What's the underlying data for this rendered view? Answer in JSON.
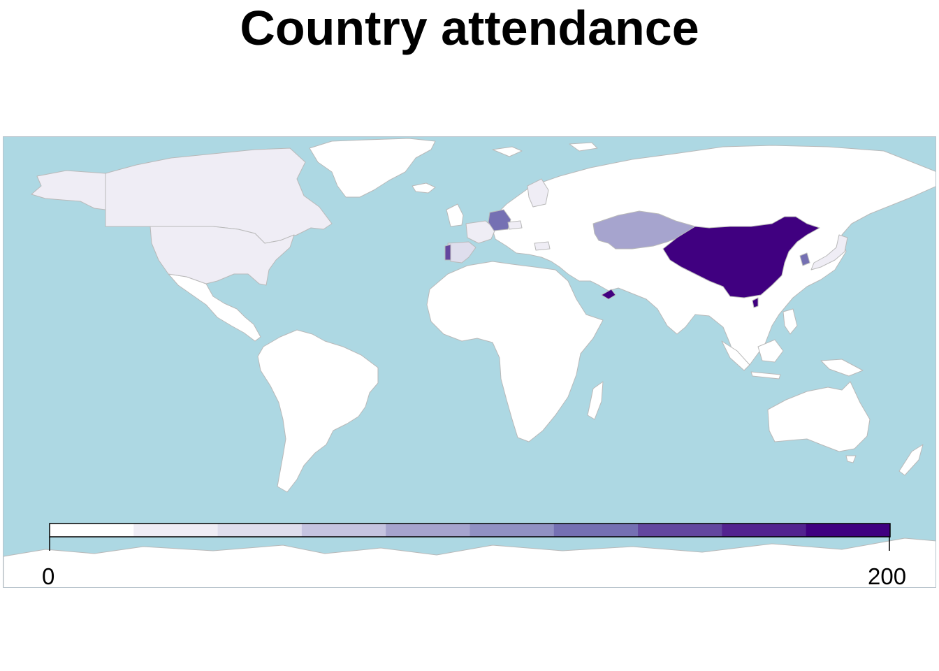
{
  "title": "Country attendance",
  "colors": {
    "ocean": "#add8e3",
    "land_zero": "#ffffff",
    "border": "#b9b9b9",
    "ramp": [
      "#ffffff",
      "#efedf5",
      "#dfdeed",
      "#c5c4e0",
      "#a6a4ce",
      "#9191c3",
      "#7570b3",
      "#63479f",
      "#53238f",
      "#400080"
    ]
  },
  "legend": {
    "min_label": "0",
    "max_label": "200",
    "min": 0,
    "max": 200,
    "bins": 10
  },
  "countries": [
    {
      "name": "China",
      "value": 200
    },
    {
      "name": "United Arab Emirates",
      "value": 200
    },
    {
      "name": "Taiwan",
      "value": 190
    },
    {
      "name": "Germany",
      "value": 130
    },
    {
      "name": "Portugal",
      "value": 140
    },
    {
      "name": "South Korea",
      "value": 130
    },
    {
      "name": "Kazakhstan",
      "value": 90
    },
    {
      "name": "Spain",
      "value": 55
    },
    {
      "name": "Japan",
      "value": 35
    },
    {
      "name": "Canada",
      "value": 30
    },
    {
      "name": "France",
      "value": 25
    },
    {
      "name": "Alaska (United States)",
      "value": 20
    },
    {
      "name": "United States",
      "value": 20
    },
    {
      "name": "Australia",
      "value": 15
    },
    {
      "name": "Finland",
      "value": 25
    },
    {
      "name": "Czechia",
      "value": 25
    },
    {
      "name": "Bulgaria",
      "value": 25
    }
  ]
}
